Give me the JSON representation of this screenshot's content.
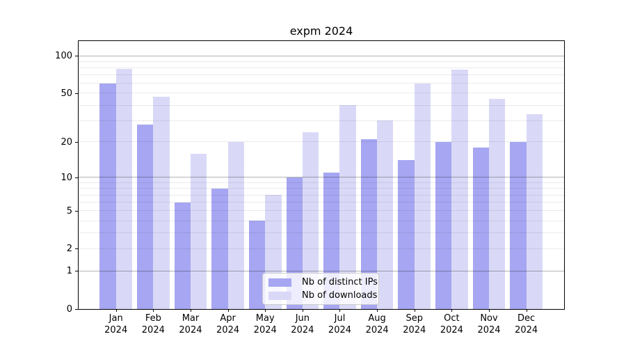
{
  "chart_data": {
    "type": "bar",
    "title": "expm 2024",
    "categories": [
      "Jan",
      "Feb",
      "Mar",
      "Apr",
      "May",
      "Jun",
      "Jul",
      "Aug",
      "Sep",
      "Oct",
      "Nov",
      "Dec"
    ],
    "category_year": "2024",
    "series": [
      {
        "name": "Nb of distinct IPs",
        "color": "#a6a6f2",
        "values": [
          60,
          28,
          6,
          8,
          4,
          10,
          11,
          21,
          14,
          20,
          18,
          20
        ]
      },
      {
        "name": "Nb of downloads",
        "color": "#d9d9f7",
        "values": [
          78,
          47,
          16,
          20,
          7,
          24,
          40,
          30,
          60,
          77,
          45,
          34
        ]
      }
    ],
    "yscale": "log1p",
    "ylim": [
      0,
      131
    ],
    "y_ticks": [
      0,
      1,
      2,
      5,
      10,
      20,
      50,
      100
    ],
    "gridlines": {
      "major": [
        1,
        10,
        100
      ],
      "minor": [
        2,
        3,
        4,
        5,
        6,
        7,
        8,
        9,
        20,
        30,
        40,
        50,
        60,
        70,
        80,
        90
      ]
    },
    "legend": {
      "position": "lower-center"
    },
    "grid": true,
    "xlabel": "",
    "ylabel": ""
  }
}
